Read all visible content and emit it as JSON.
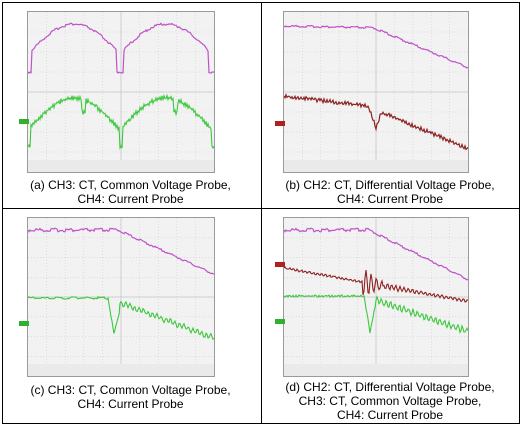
{
  "panels": [
    {
      "id": "a",
      "caption": [
        "(a) CH3: CT, Common Voltage Probe,",
        "CH4: Current Probe"
      ]
    },
    {
      "id": "b",
      "caption": [
        "(b) CH2: CT, Differential Voltage Probe,",
        "CH4: Current Probe"
      ]
    },
    {
      "id": "c",
      "caption": [
        "(c) CH3: CT, Common Voltage Probe,",
        "CH4: Current Probe"
      ]
    },
    {
      "id": "d",
      "caption": [
        "(d) CH2: CT, Differential Voltage Probe,",
        "CH3: CT, Common Voltage Probe,",
        "CH4: Current Probe"
      ]
    }
  ],
  "colors": {
    "magenta": "#c052c8",
    "green": "#3cc83c",
    "darkred": "#8c2020",
    "grid": "#c8c8c8",
    "marker_green": "#2fb02f",
    "marker_red": "#b02020"
  }
}
